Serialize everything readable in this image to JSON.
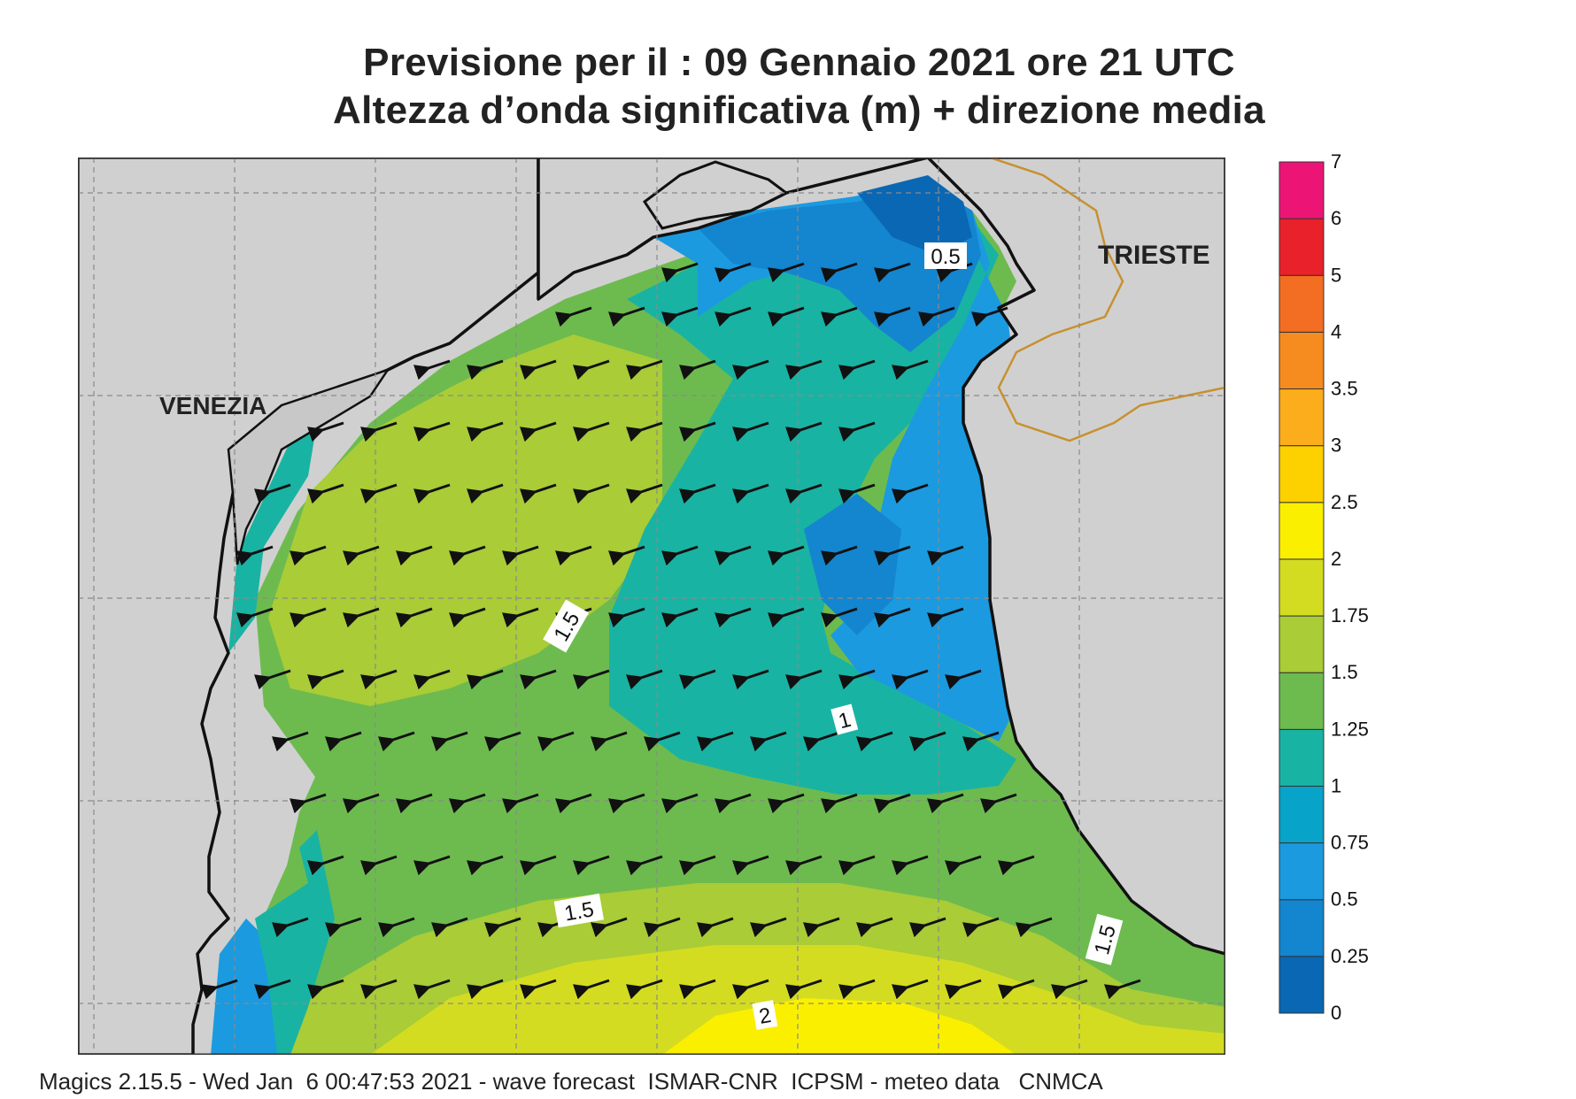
{
  "title": {
    "line1": "Previsione per il  :  09  Gennaio  2021   ore 21 UTC",
    "line2": "Altezza d’onda significativa (m) + direzione media"
  },
  "places": {
    "venezia": "VENEZIA",
    "trieste": "TRIESTE"
  },
  "contour_labels": [
    "0.5",
    "1.5",
    "1",
    "1.5",
    "1.5",
    "2"
  ],
  "colorbar": {
    "ticks": [
      "0",
      "0.25",
      "0.5",
      "0.75",
      "1",
      "1.25",
      "1.5",
      "1.75",
      "2",
      "2.5",
      "3",
      "3.5",
      "4",
      "5",
      "6",
      "7"
    ],
    "colors": [
      "#0a67b4",
      "#1485cf",
      "#1b9ae0",
      "#08a3c8",
      "#19b3a3",
      "#6dbb4f",
      "#a9cc37",
      "#d4dc22",
      "#fbef00",
      "#fdd000",
      "#fcad1b",
      "#f68b1f",
      "#f36e22",
      "#e9212a",
      "#ec1575"
    ]
  },
  "colors": {
    "land": "#d0d0d0",
    "coast": "#111111",
    "border": "#c8902e",
    "grid": "#8a8a8a"
  },
  "footer": "Magics 2.15.5 - Wed Jan  6 00:47:53 2021 - wave forecast  ISMAR-CNR  ICPSM - meteo data   CNMCA"
}
